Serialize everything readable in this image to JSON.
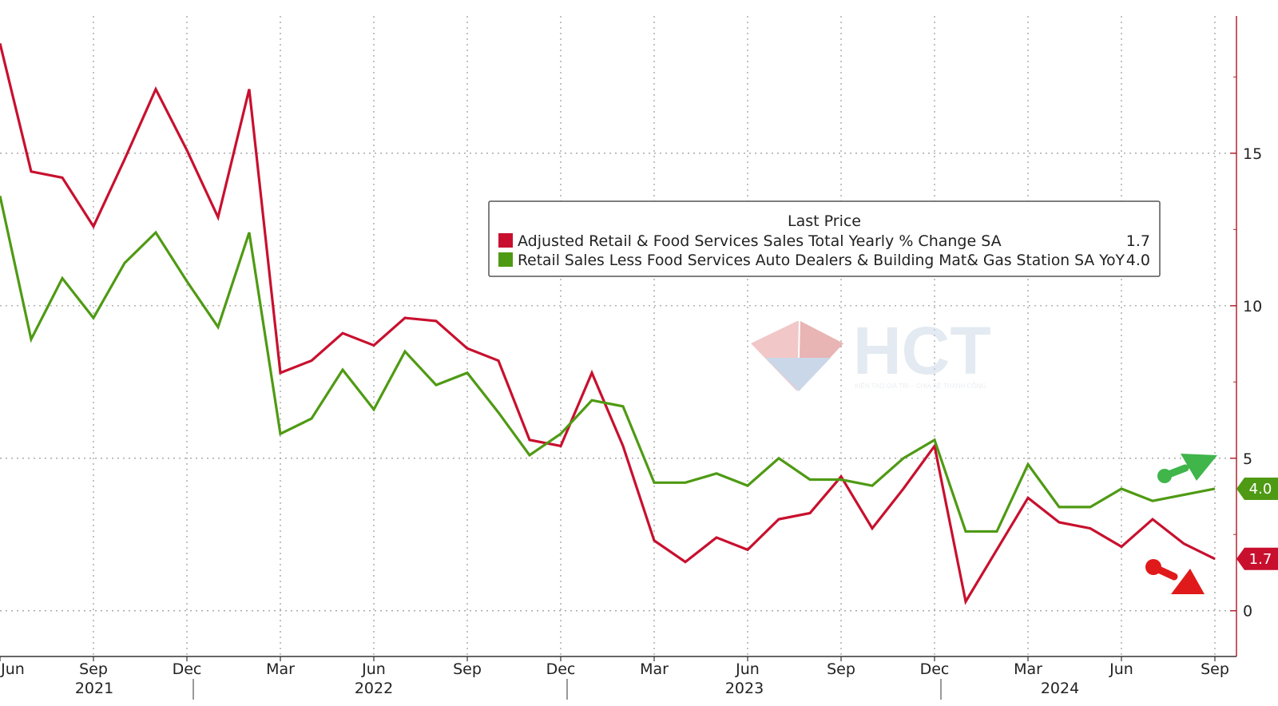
{
  "chart_data": {
    "type": "line",
    "x_tick_labels": [
      "Jun",
      "Sep",
      "Dec",
      "Mar",
      "Jun",
      "Sep",
      "Dec",
      "Mar",
      "Jun",
      "Sep",
      "Dec",
      "Mar",
      "Jun",
      "Sep"
    ],
    "year_labels": [
      "2021",
      "2022",
      "2023",
      "2024"
    ],
    "y_ticks": [
      "0",
      "5",
      "10",
      "15"
    ],
    "ylim": [
      -1.5,
      19.5
    ],
    "y_axis_position": "right",
    "grid": true,
    "legend": {
      "title": "Last Price",
      "placement": "center-right",
      "entries": [
        {
          "label": "Adjusted Retail & Food Services Sales Total Yearly % Change SA",
          "value": "1.7"
        },
        {
          "label": "Retail Sales Less Food Services Auto Dealers & Building Mat& Gas Station SA YoY",
          "value": "4.0"
        }
      ]
    },
    "x": [
      "2021-06",
      "2021-07",
      "2021-08",
      "2021-09",
      "2021-10",
      "2021-11",
      "2021-12",
      "2022-01",
      "2022-02",
      "2022-03",
      "2022-04",
      "2022-05",
      "2022-06",
      "2022-07",
      "2022-08",
      "2022-09",
      "2022-10",
      "2022-11",
      "2022-12",
      "2023-01",
      "2023-02",
      "2023-03",
      "2023-04",
      "2023-05",
      "2023-06",
      "2023-07",
      "2023-08",
      "2023-09",
      "2023-10",
      "2023-11",
      "2023-12",
      "2024-01",
      "2024-02",
      "2024-03",
      "2024-04",
      "2024-05",
      "2024-06",
      "2024-07",
      "2024-08",
      "2024-09"
    ],
    "series": [
      {
        "value_label": "1.7",
        "color": "#c8102e",
        "values": [
          18.6,
          14.4,
          14.2,
          12.6,
          14.8,
          17.1,
          15.1,
          12.9,
          17.1,
          7.8,
          8.2,
          9.1,
          8.7,
          9.6,
          9.5,
          8.6,
          8.2,
          5.6,
          5.4,
          7.8,
          5.4,
          2.3,
          1.6,
          2.4,
          2.0,
          3.0,
          3.2,
          4.4,
          2.7,
          4.0,
          5.4,
          0.3,
          2.0,
          3.7,
          2.9,
          2.7,
          2.1,
          3.0,
          2.2,
          1.7
        ]
      },
      {
        "value_label": "4.0",
        "color": "#4f9a14",
        "values": [
          13.6,
          8.9,
          10.9,
          9.6,
          11.4,
          12.4,
          10.8,
          9.3,
          12.4,
          5.8,
          6.3,
          7.9,
          6.6,
          8.5,
          7.4,
          7.8,
          6.5,
          5.1,
          5.8,
          6.9,
          6.7,
          4.2,
          4.2,
          4.5,
          4.1,
          5.0,
          4.3,
          4.3,
          4.1,
          5.0,
          5.6,
          2.6,
          2.6,
          4.8,
          3.4,
          3.4,
          4.0,
          3.6,
          3.8,
          4.0
        ]
      }
    ]
  },
  "watermark": {
    "text": "HCT",
    "tagline": "KIẾN TẠO GIÁ TRỊ – CHIA SẺ THÀNH CÔNG"
  }
}
